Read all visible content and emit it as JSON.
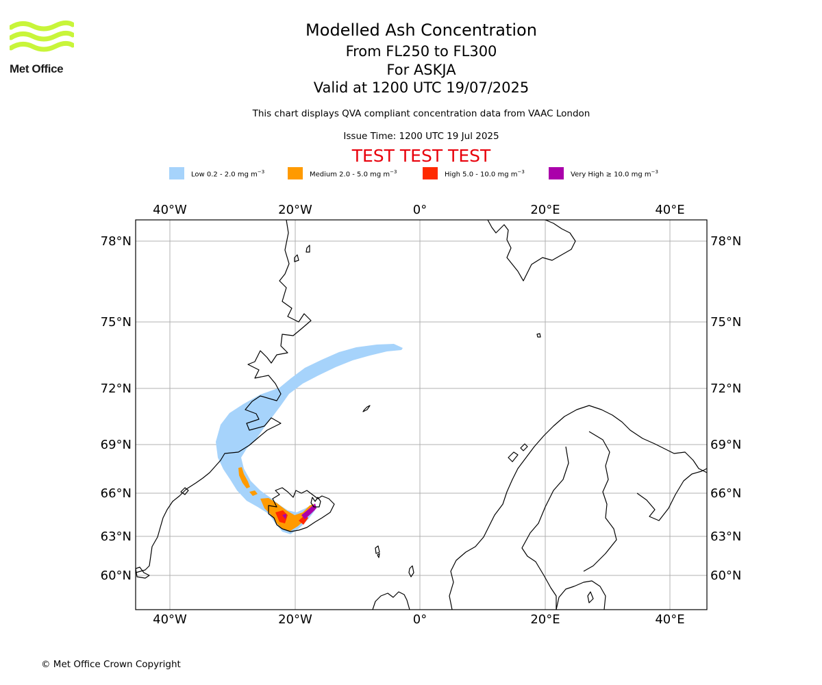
{
  "logo": {
    "text": "Met Office",
    "stripe_color": "#c8f53a"
  },
  "title": {
    "line1": "Modelled Ash Concentration",
    "line2": "From FL250 to FL300",
    "line3": "For ASKJA",
    "line4": "Valid at 1200 UTC 19/07/2025"
  },
  "subtitle": "This chart displays QVA compliant concentration data from VAAC London",
  "issue_time": "Issue Time: 1200 UTC 19 Jul 2025",
  "test_banner": "TEST TEST TEST",
  "legend": [
    {
      "label": "Low 0.2 - 2.0 mg m",
      "exp": "−3",
      "color": "#a6d3fb"
    },
    {
      "label": "Medium 2.0 - 5.0 mg m",
      "exp": "−3",
      "color": "#ff9a00"
    },
    {
      "label": "High 5.0 - 10.0 mg m",
      "exp": "−3",
      "color": "#ff2a00"
    },
    {
      "label": "Very High  ≥  10.0 mg m",
      "exp": "−3",
      "color": "#aa00aa"
    }
  ],
  "map": {
    "lon_ticks": [
      "40°W",
      "20°W",
      "0°",
      "20°E",
      "40°E"
    ],
    "lat_ticks": [
      "78°N",
      "75°N",
      "72°N",
      "69°N",
      "66°N",
      "63°N",
      "60°N"
    ],
    "volcano": "ASKJA"
  },
  "copyright": "© Met Office Crown Copyright"
}
